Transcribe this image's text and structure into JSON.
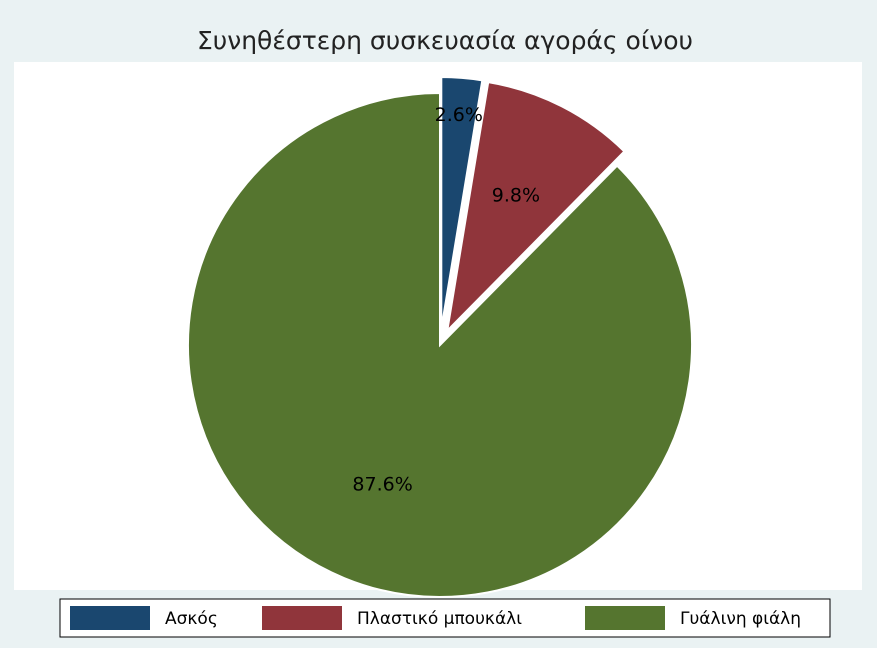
{
  "chart_data": {
    "type": "pie",
    "title": "Συνηθέστερη συσκευασία αγοράς οίνου",
    "categories": [
      "Ασκός",
      "Πλαστικό μπουκάλι",
      "Γυάλινη φιάλη"
    ],
    "values": [
      2.6,
      9.8,
      87.6
    ],
    "value_labels": [
      "2.6%",
      "9.8%",
      "87.6%"
    ],
    "colors": [
      "#1a476f",
      "#90353b",
      "#55752f"
    ],
    "explode": [
      true,
      true,
      false
    ],
    "legend": "bottom"
  }
}
